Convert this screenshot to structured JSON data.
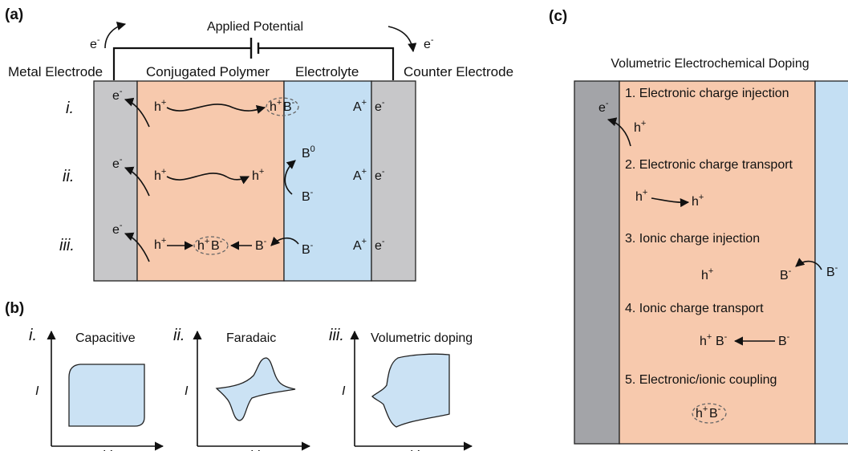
{
  "panel_a": {
    "label": "(a)",
    "applied_potential": "Applied Potential",
    "regions": [
      "Metal Electrode",
      "Conjugated Polymer",
      "Electrolyte",
      "Counter Electrode"
    ],
    "electron": "e",
    "minus": "-",
    "plus": "+",
    "hole": "h",
    "anion": "B",
    "cation": "A",
    "neutral": "0",
    "rows": [
      "i.",
      "ii.",
      "iii."
    ]
  },
  "panel_b": {
    "label": "(b)",
    "plots": [
      {
        "roman": "i.",
        "title": "Capacitive"
      },
      {
        "roman": "ii.",
        "title": "Faradaic"
      },
      {
        "roman": "iii.",
        "title": "Volumetric doping"
      }
    ],
    "ylabel": "I",
    "xlabel": "V"
  },
  "panel_c": {
    "label": "(c)",
    "title": "Volumetric Electrochemical Doping",
    "steps": [
      "1. Electronic charge injection",
      "2. Electronic charge transport",
      "3. Ionic charge injection",
      "4. Ionic charge transport",
      "5. Electronic/ionic coupling"
    ]
  },
  "colors": {
    "electrode_gray": "#c7c7c9",
    "polymer_peach": "#f7c9ad",
    "electrolyte_blue": "#c4dff3",
    "dark_electrode": "#a3a4a8",
    "cv_fill": "#cbe2f4"
  }
}
